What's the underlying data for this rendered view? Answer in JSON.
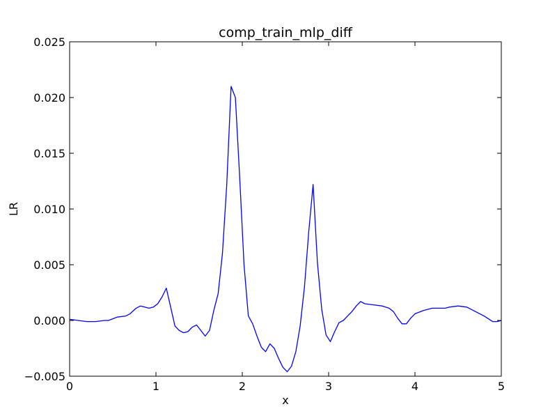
{
  "chart_data": {
    "type": "line",
    "title": "comp_train_mlp_diff",
    "xlabel": "x",
    "ylabel": "LR",
    "xlim": [
      0,
      5
    ],
    "ylim": [
      -0.005,
      0.025
    ],
    "xticks": [
      0,
      1,
      2,
      3,
      4,
      5
    ],
    "xtick_labels": [
      "0",
      "1",
      "2",
      "3",
      "4",
      "5"
    ],
    "yticks": [
      -0.005,
      0,
      0.005,
      0.01,
      0.015,
      0.02,
      0.025
    ],
    "ytick_labels": [
      "−0.005",
      "0.000",
      "0.005",
      "0.010",
      "0.015",
      "0.020",
      "0.025"
    ],
    "grid": false,
    "series": [
      {
        "color": "#0000ff",
        "x": [
          0,
          0.1,
          0.2,
          0.3,
          0.4,
          0.45,
          0.55,
          0.65,
          0.7,
          0.77,
          0.82,
          0.87,
          0.92,
          0.97,
          1.02,
          1.07,
          1.12,
          1.17,
          1.22,
          1.27,
          1.32,
          1.37,
          1.42,
          1.47,
          1.52,
          1.57,
          1.62,
          1.67,
          1.72,
          1.77,
          1.82,
          1.87,
          1.92,
          1.97,
          2.02,
          2.07,
          2.12,
          2.17,
          2.22,
          2.27,
          2.32,
          2.37,
          2.42,
          2.47,
          2.52,
          2.57,
          2.62,
          2.67,
          2.72,
          2.77,
          2.82,
          2.87,
          2.92,
          2.97,
          3.02,
          3.07,
          3.12,
          3.17,
          3.22,
          3.27,
          3.32,
          3.37,
          3.42,
          3.52,
          3.62,
          3.7,
          3.75,
          3.8,
          3.85,
          3.9,
          3.95,
          4.0,
          4.1,
          4.2,
          4.3,
          4.35,
          4.4,
          4.5,
          4.6,
          4.7,
          4.8,
          4.9,
          4.95,
          5.0
        ],
        "y": [
          0.0001,
          0.0,
          -0.0001,
          -0.0001,
          0.0,
          0.0,
          0.0003,
          0.0004,
          0.0006,
          0.0011,
          0.0013,
          0.0012,
          0.0011,
          0.0012,
          0.0015,
          0.0021,
          0.0029,
          0.0012,
          -0.0005,
          -0.0009,
          -0.0011,
          -0.001,
          -0.0006,
          -0.0004,
          -0.0009,
          -0.0014,
          -0.0009,
          0.0009,
          0.0024,
          0.006,
          0.0122,
          0.021,
          0.02,
          0.0128,
          0.005,
          0.0004,
          -0.0003,
          -0.0014,
          -0.0024,
          -0.0028,
          -0.0021,
          -0.0025,
          -0.0034,
          -0.0042,
          -0.0046,
          -0.0041,
          -0.0028,
          -0.0005,
          0.003,
          0.008,
          0.0122,
          0.0052,
          0.001,
          -0.0013,
          -0.0019,
          -0.001,
          -0.0002,
          0.0,
          0.0004,
          0.0008,
          0.0013,
          0.0017,
          0.0015,
          0.0014,
          0.0013,
          0.0011,
          0.0008,
          0.0002,
          -0.0003,
          -0.0003,
          0.0002,
          0.0006,
          0.0009,
          0.0011,
          0.0011,
          0.0011,
          0.0012,
          0.0013,
          0.0012,
          0.0008,
          0.0004,
          -0.0001,
          -0.0001,
          0.0
        ]
      }
    ]
  }
}
